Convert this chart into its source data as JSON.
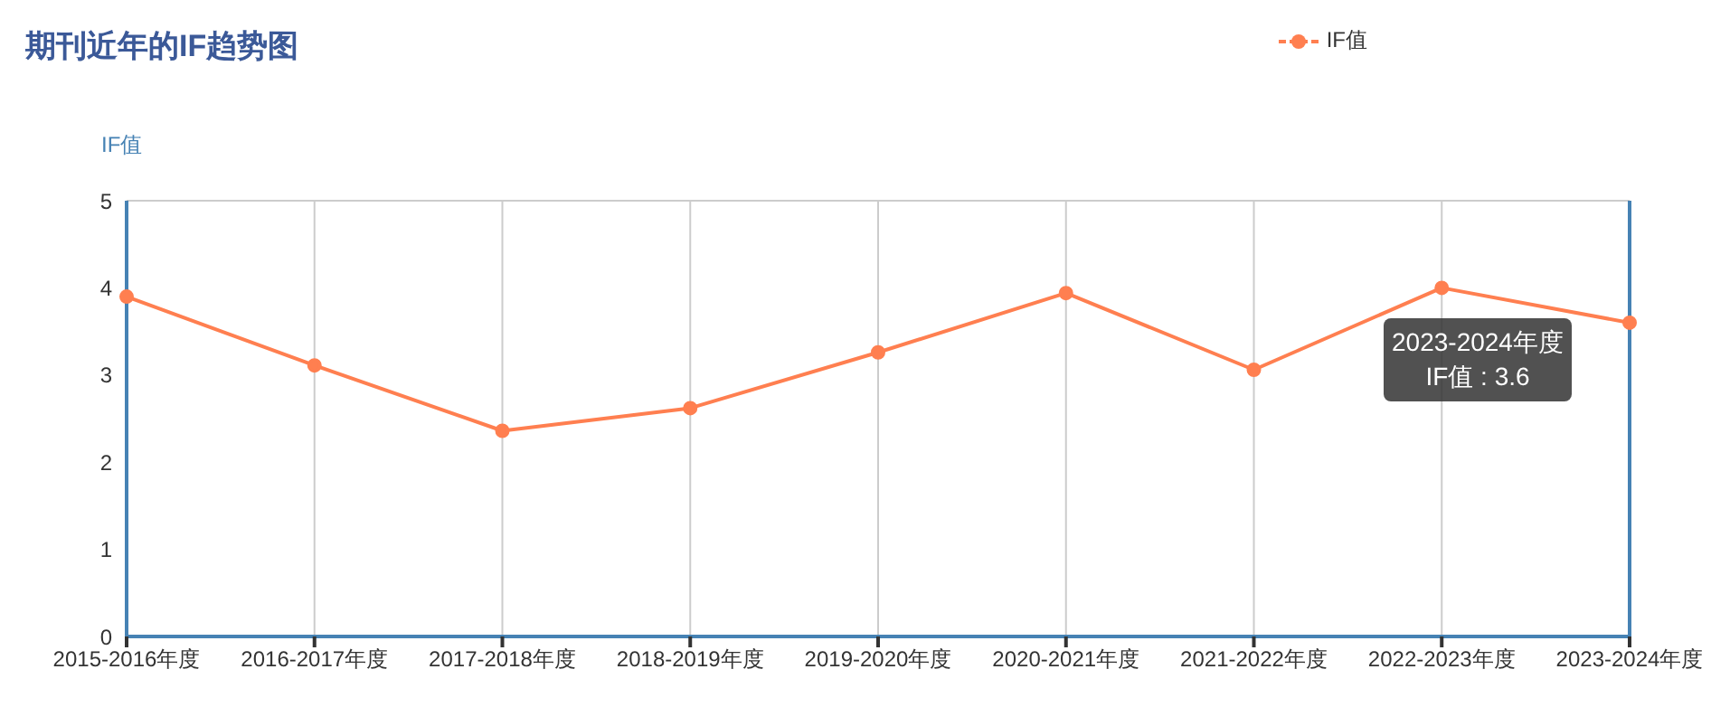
{
  "chart_data": {
    "type": "line",
    "title": "期刊近年的IF趋势图",
    "ylabel": "IF值",
    "categories": [
      "2015-2016年度",
      "2016-2017年度",
      "2017-2018年度",
      "2018-2019年度",
      "2019-2020年度",
      "2020-2021年度",
      "2021-2022年度",
      "2022-2023年度",
      "2023-2024年度"
    ],
    "series": [
      {
        "name": "IF值",
        "color": "#ff7f50",
        "values": [
          3.9,
          3.11,
          2.36,
          2.62,
          3.26,
          3.94,
          3.06,
          4.0,
          3.6
        ]
      }
    ],
    "ylim": [
      0,
      5
    ],
    "yticks": [
      0,
      1,
      2,
      3,
      4,
      5
    ],
    "grid": true,
    "legend": "top right",
    "marker": "circle",
    "line_style": "solid",
    "annotations": [
      {
        "text": "2023-2024年度\nIF值 : 3.6",
        "x": "2023-2024年度",
        "y": 3.6
      }
    ]
  }
}
